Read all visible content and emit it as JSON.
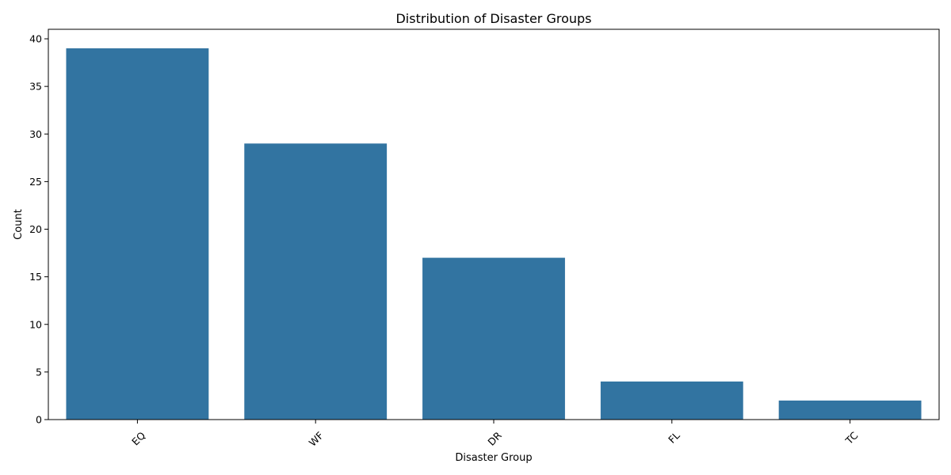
{
  "chart_data": {
    "type": "bar",
    "title": "Distribution of Disaster Groups",
    "xlabel": "Disaster Group",
    "ylabel": "Count",
    "categories": [
      "EQ",
      "WF",
      "DR",
      "FL",
      "TC"
    ],
    "values": [
      39,
      29,
      17,
      4,
      2
    ],
    "ylim": [
      0,
      41
    ],
    "yticks": [
      0,
      5,
      10,
      15,
      20,
      25,
      30,
      35,
      40
    ],
    "x_tick_rotation": 45,
    "grid": false,
    "legend": "none",
    "bar_color": "#3274a1"
  }
}
